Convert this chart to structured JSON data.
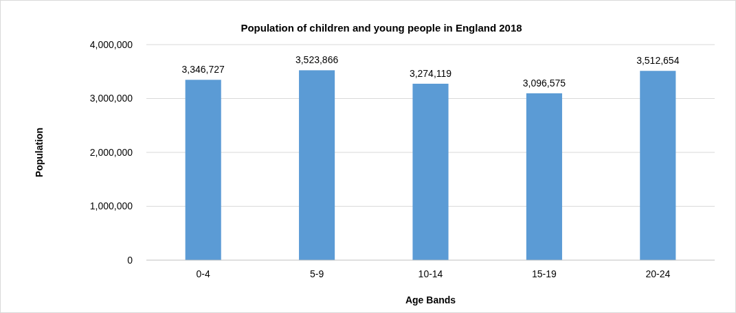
{
  "chart_data": {
    "type": "bar",
    "title": "Population of children and young people in England 2018",
    "xlabel": "Age Bands",
    "ylabel": "Population",
    "categories": [
      "0-4",
      "5-9",
      "10-14",
      "15-19",
      "20-24"
    ],
    "values": [
      3346727,
      3523866,
      3274119,
      3096575,
      3512654
    ],
    "color": "#5b9bd5",
    "ylim": [
      0,
      4000000
    ],
    "yticks": [
      {
        "value": 0,
        "label": "0"
      },
      {
        "value": 1000000,
        "label": "1,000,000"
      },
      {
        "value": 2000000,
        "label": "2,000,000"
      },
      {
        "value": 3000000,
        "label": "3,000,000"
      },
      {
        "value": 4000000,
        "label": "4,000,000"
      }
    ],
    "value_labels": [
      "3,346,727",
      "3,523,866",
      "3,274,119",
      "3,096,575",
      "3,512,654"
    ],
    "grid": "y"
  }
}
